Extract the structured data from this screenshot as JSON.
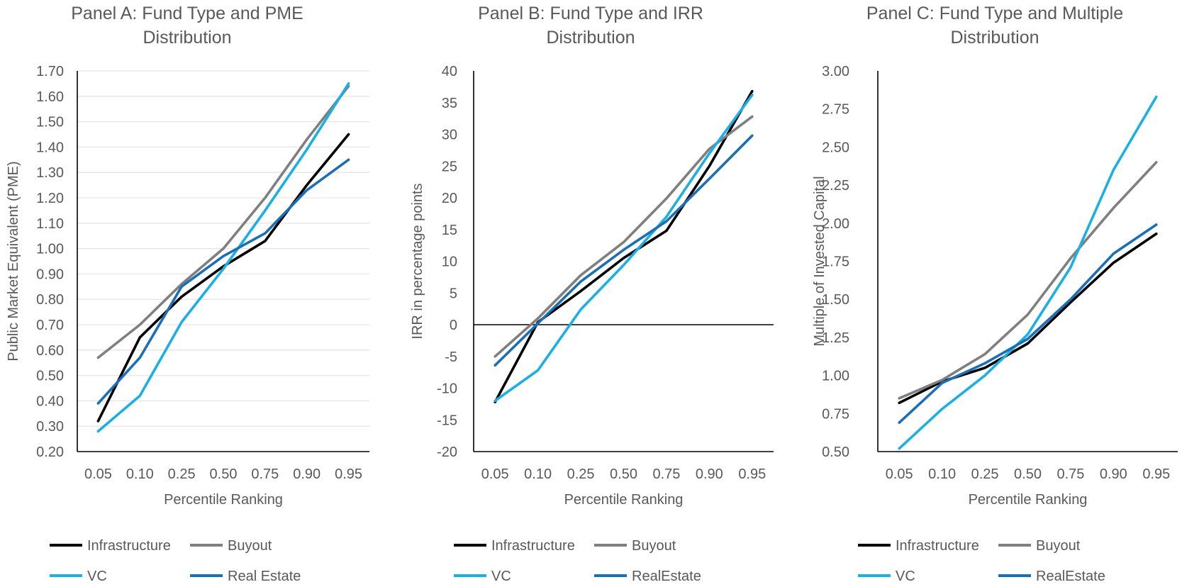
{
  "chart_data": [
    {
      "type": "line",
      "title": [
        "Panel A: Fund Type and PME",
        "Distribution"
      ],
      "xlabel": "Percentile Ranking",
      "ylabel": "Public Market Equivalent (PME)",
      "categories": [
        "0.05",
        "0.10",
        "0.25",
        "0.50",
        "0.75",
        "0.90",
        "0.95"
      ],
      "ylim": [
        0.2,
        1.7
      ],
      "ystep": 0.1,
      "ydecimals": 2,
      "grid": true,
      "legend": "bottom",
      "series": [
        {
          "name": "Infrastructure",
          "color": "#000000",
          "values": [
            0.32,
            0.65,
            0.81,
            0.93,
            1.03,
            1.25,
            1.45
          ]
        },
        {
          "name": "Buyout",
          "color": "#7f7f7f",
          "values": [
            0.57,
            0.7,
            0.86,
            1.0,
            1.2,
            1.43,
            1.64
          ]
        },
        {
          "name": "VC",
          "color": "#1ab0e6",
          "values": [
            0.28,
            0.42,
            0.71,
            0.92,
            1.15,
            1.39,
            1.65
          ]
        },
        {
          "name": "Real Estate",
          "color": "#1a6fba",
          "values": [
            0.39,
            0.57,
            0.85,
            0.97,
            1.06,
            1.23,
            1.35
          ]
        }
      ]
    },
    {
      "type": "line",
      "title": [
        "Panel B: Fund Type and IRR",
        "Distribution"
      ],
      "xlabel": "Percentile Ranking",
      "ylabel": "IRR in percentage points",
      "categories": [
        "0.05",
        "0.10",
        "0.25",
        "0.50",
        "0.75",
        "0.90",
        "0.95"
      ],
      "ylim": [
        -20,
        40
      ],
      "ystep": 5,
      "ydecimals": 0,
      "grid": false,
      "zero_line": true,
      "legend": "bottom",
      "series": [
        {
          "name": "Infrastructure",
          "color": "#000000",
          "values": [
            -12.2,
            0.4,
            5.3,
            10.5,
            14.8,
            25.0,
            36.8
          ]
        },
        {
          "name": "Buyout",
          "color": "#7f7f7f",
          "values": [
            -5.0,
            1.0,
            7.8,
            13.0,
            19.9,
            27.7,
            32.8
          ]
        },
        {
          "name": "VC",
          "color": "#1ab0e6",
          "values": [
            -12.0,
            -7.2,
            2.4,
            9.4,
            17.0,
            27.0,
            36.2
          ]
        },
        {
          "name": "RealEstate",
          "color": "#1a6fba",
          "values": [
            -6.4,
            0.2,
            6.8,
            11.8,
            16.3,
            23.0,
            29.8
          ]
        }
      ]
    },
    {
      "type": "line",
      "title": [
        "Panel C: Fund Type and Multiple",
        "Distribution"
      ],
      "xlabel": "Percentile Ranking",
      "ylabel": "Multiple of Invested Capital",
      "categories": [
        "0.05",
        "0.10",
        "0.25",
        "0.50",
        "0.75",
        "0.90",
        "0.95"
      ],
      "ylim": [
        0.5,
        3.0
      ],
      "ystep": 0.25,
      "ydecimals": 2,
      "grid": false,
      "legend": "bottom",
      "series": [
        {
          "name": "Infrastructure",
          "color": "#000000",
          "values": [
            0.82,
            0.96,
            1.05,
            1.21,
            1.48,
            1.74,
            1.93
          ]
        },
        {
          "name": "Buyout",
          "color": "#7f7f7f",
          "values": [
            0.85,
            0.97,
            1.14,
            1.4,
            1.77,
            2.1,
            2.4
          ]
        },
        {
          "name": "VC",
          "color": "#1ab0e6",
          "values": [
            0.52,
            0.78,
            1.0,
            1.27,
            1.71,
            2.35,
            2.83
          ]
        },
        {
          "name": "RealEstate",
          "color": "#1a6fba",
          "values": [
            0.69,
            0.95,
            1.08,
            1.24,
            1.5,
            1.8,
            1.99
          ]
        }
      ]
    }
  ]
}
